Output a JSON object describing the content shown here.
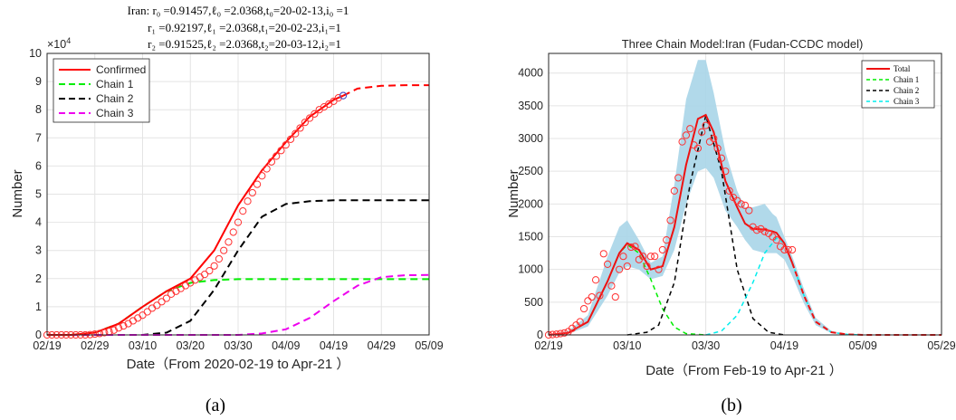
{
  "figure": {
    "label_a": "(a)",
    "label_b": "(b)"
  },
  "chart_data": [
    {
      "type": "line",
      "title_lines": [
        "Iran: r₀ =0.91457,ℓ₀ =2.0368,t₀=20-02-13,i₀ =1",
        "r₁ =0.92197,ℓ₁ =2.0368,t₁=20-02-23,i₁=1",
        "r₂ =0.91525,ℓ₂ =2.0368,t₂=20-03-12,i₂=1"
      ],
      "xlabel": "Date（From 2020-02-19 to Apr-21 ）",
      "ylabel": "Number",
      "y_exponent_label": "×10",
      "y_exponent_power": "4",
      "x_ticks": [
        "02/19",
        "02/29",
        "03/10",
        "03/20",
        "03/30",
        "04/09",
        "04/19",
        "04/29",
        "05/09"
      ],
      "x_tick_days": [
        0,
        10,
        20,
        30,
        40,
        50,
        60,
        70,
        80
      ],
      "y_ticks": [
        0,
        1,
        2,
        3,
        4,
        5,
        6,
        7,
        8,
        9,
        10
      ],
      "xlim": [
        0,
        80
      ],
      "ylim": [
        0,
        10
      ],
      "y_scale_note": "values in units of 10^4",
      "grid": true,
      "legend_position": "top-left",
      "legend": [
        "Confirmed",
        "Chain 1",
        "Chain 2",
        "Chain 3"
      ],
      "colors": {
        "confirmed": "#ff0000",
        "chain1": "#00ee00",
        "chain2": "#000000",
        "chain3": "#ee00ee",
        "observed_marker": "#ff3030"
      },
      "series": [
        {
          "name": "Confirmed",
          "style": "solid red (fit), dashed red (projection after 04/21)",
          "x": [
            0,
            5,
            10,
            15,
            20,
            25,
            30,
            35,
            40,
            45,
            50,
            55,
            60,
            62,
            65,
            70,
            75,
            80
          ],
          "y": [
            0.0,
            0.0,
            0.08,
            0.4,
            1.0,
            1.55,
            2.0,
            3.0,
            4.6,
            5.85,
            6.85,
            7.75,
            8.35,
            8.5,
            8.75,
            8.85,
            8.87,
            8.87
          ]
        },
        {
          "name": "Chain 1",
          "x": [
            0,
            5,
            10,
            15,
            20,
            25,
            30,
            35,
            40,
            50,
            60,
            70,
            80
          ],
          "y": [
            0.0,
            0.0,
            0.08,
            0.4,
            1.0,
            1.55,
            1.85,
            1.95,
            1.98,
            1.98,
            1.98,
            1.98,
            1.98
          ]
        },
        {
          "name": "Chain 2",
          "x": [
            0,
            15,
            20,
            25,
            30,
            35,
            40,
            45,
            50,
            55,
            60,
            70,
            80
          ],
          "y": [
            0.0,
            0.0,
            0.0,
            0.08,
            0.5,
            1.6,
            3.0,
            4.2,
            4.65,
            4.75,
            4.78,
            4.78,
            4.78
          ]
        },
        {
          "name": "Chain 3",
          "x": [
            0,
            40,
            45,
            50,
            55,
            60,
            65,
            70,
            75,
            80
          ],
          "y": [
            0.0,
            0.0,
            0.05,
            0.2,
            0.6,
            1.2,
            1.75,
            2.05,
            2.12,
            2.13
          ]
        }
      ],
      "observed": {
        "x": [
          0,
          1,
          2,
          3,
          4,
          5,
          6,
          7,
          8,
          9,
          10,
          11,
          12,
          13,
          14,
          15,
          16,
          17,
          18,
          19,
          20,
          21,
          22,
          23,
          24,
          25,
          26,
          27,
          28,
          29,
          30,
          31,
          32,
          33,
          34,
          35,
          36,
          37,
          38,
          39,
          40,
          41,
          42,
          43,
          44,
          45,
          46,
          47,
          48,
          49,
          50,
          51,
          52,
          53,
          54,
          55,
          56,
          57,
          58,
          59,
          60,
          61,
          62
        ],
        "y": [
          0.0,
          0.0,
          0.0,
          0.0,
          0.0,
          0.0,
          0.0,
          0.0,
          0.0,
          0.01,
          0.03,
          0.05,
          0.08,
          0.12,
          0.17,
          0.25,
          0.32,
          0.4,
          0.5,
          0.6,
          0.7,
          0.82,
          0.95,
          1.05,
          1.18,
          1.3,
          1.45,
          1.55,
          1.65,
          1.75,
          1.85,
          1.95,
          2.05,
          2.15,
          2.28,
          2.45,
          2.7,
          3.0,
          3.3,
          3.65,
          4.0,
          4.4,
          4.75,
          5.05,
          5.35,
          5.65,
          5.9,
          6.15,
          6.35,
          6.55,
          6.75,
          6.95,
          7.15,
          7.35,
          7.55,
          7.7,
          7.85,
          8.0,
          8.1,
          8.2,
          8.3,
          8.42,
          8.5
        ]
      }
    },
    {
      "type": "line",
      "title": "Three Chain Model:Iran (Fudan-CCDC model)",
      "xlabel": "Date（From Feb-19 to Apr-21 ）",
      "ylabel": "Number",
      "x_ticks": [
        "02/19",
        "03/10",
        "03/30",
        "04/19",
        "05/09",
        "05/29"
      ],
      "x_tick_days": [
        0,
        20,
        40,
        60,
        80,
        100
      ],
      "y_ticks": [
        0,
        500,
        1000,
        1500,
        2000,
        2500,
        3000,
        3500,
        4000
      ],
      "xlim": [
        0,
        100
      ],
      "ylim": [
        0,
        4300
      ],
      "grid": true,
      "legend_position": "top-right",
      "legend": [
        "Total",
        "Chain 1",
        "Chain 2",
        "Chain 3"
      ],
      "colors": {
        "total": "#ee1111",
        "chain1": "#00ee00",
        "chain2": "#000000",
        "chain3": "#00eeee",
        "band": "#a8d5e8",
        "observed_marker": "#ff3030"
      },
      "series": [
        {
          "name": "Total",
          "x": [
            0,
            5,
            10,
            15,
            18,
            20,
            23,
            26,
            29,
            32,
            35,
            38,
            40,
            42,
            45,
            48,
            50,
            52,
            55,
            57,
            58,
            60,
            62,
            65,
            68,
            72,
            76,
            80,
            90,
            100
          ],
          "y": [
            0,
            30,
            200,
            820,
            1250,
            1400,
            1300,
            1000,
            1050,
            1650,
            2600,
            3300,
            3360,
            3100,
            2350,
            1950,
            1700,
            1620,
            1610,
            1580,
            1560,
            1400,
            1100,
            600,
            200,
            40,
            8,
            0,
            0,
            0
          ]
        },
        {
          "name": "Chain 1",
          "x": [
            0,
            5,
            10,
            15,
            18,
            20,
            23,
            26,
            29,
            32,
            35,
            40
          ],
          "y": [
            0,
            30,
            200,
            820,
            1250,
            1380,
            1250,
            850,
            400,
            120,
            20,
            0
          ]
        },
        {
          "name": "Chain 2",
          "x": [
            20,
            25,
            28,
            32,
            36,
            40,
            44,
            48,
            52,
            56,
            60
          ],
          "y": [
            0,
            40,
            150,
            800,
            2300,
            3350,
            2500,
            1000,
            250,
            40,
            0
          ]
        },
        {
          "name": "Chain 3",
          "x": [
            40,
            44,
            48,
            52,
            55,
            58,
            60,
            62,
            65,
            68,
            72,
            76,
            80
          ],
          "y": [
            0,
            60,
            300,
            800,
            1250,
            1480,
            1400,
            1100,
            600,
            200,
            40,
            8,
            0
          ]
        }
      ],
      "band": {
        "x": [
          0,
          5,
          10,
          15,
          18,
          20,
          23,
          26,
          29,
          32,
          35,
          38,
          40,
          42,
          45,
          48,
          50,
          52,
          55,
          57,
          58,
          60,
          62,
          65,
          68,
          72,
          76,
          80,
          90,
          100
        ],
        "upper": [
          0,
          60,
          300,
          1200,
          1650,
          1750,
          1450,
          1100,
          1200,
          2300,
          3600,
          4200,
          4200,
          3700,
          2800,
          2200,
          1950,
          1950,
          2000,
          1850,
          1800,
          1500,
          1200,
          700,
          260,
          60,
          12,
          0,
          0,
          0
        ],
        "lower": [
          0,
          15,
          130,
          600,
          950,
          1050,
          1000,
          850,
          900,
          1300,
          2000,
          2500,
          2550,
          2400,
          1900,
          1650,
          1450,
          1300,
          1250,
          1250,
          1250,
          1150,
          900,
          480,
          150,
          25,
          4,
          0,
          0,
          0
        ]
      },
      "observed": {
        "x": [
          0,
          1,
          2,
          3,
          4,
          5,
          6,
          7,
          8,
          9,
          10,
          11,
          12,
          13,
          14,
          15,
          16,
          17,
          18,
          19,
          20,
          21,
          22,
          23,
          24,
          25,
          26,
          27,
          28,
          29,
          30,
          31,
          32,
          33,
          34,
          35,
          36,
          37,
          38,
          39,
          40,
          41,
          42,
          43,
          44,
          45,
          46,
          47,
          48,
          49,
          50,
          51,
          52,
          53,
          54,
          55,
          56,
          57,
          58,
          59,
          60,
          61,
          62
        ],
        "y": [
          0,
          5,
          10,
          20,
          30,
          50,
          100,
          150,
          200,
          400,
          520,
          580,
          840,
          600,
          1240,
          1080,
          750,
          580,
          1000,
          1200,
          1050,
          1340,
          1350,
          1150,
          1200,
          1050,
          1200,
          1200,
          1000,
          1300,
          1450,
          1750,
          2200,
          2400,
          2950,
          3050,
          3150,
          2900,
          2850,
          3100,
          3200,
          2950,
          3000,
          2850,
          2700,
          2500,
          2200,
          2100,
          2050,
          2000,
          1980,
          1900,
          1650,
          1600,
          1620,
          1580,
          1550,
          1500,
          1450,
          1350,
          1300,
          1300,
          1300
        ]
      }
    }
  ]
}
